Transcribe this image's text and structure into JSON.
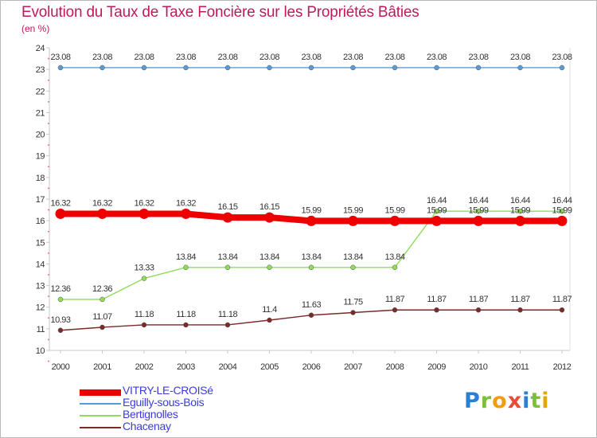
{
  "header": {
    "title": "Evolution du Taux de Taxe Foncière sur les Propriétés Bâties",
    "unit": "(en %)"
  },
  "brand": {
    "letters": [
      "P",
      "r",
      "o",
      "x",
      "i",
      "t",
      "i"
    ],
    "colors": [
      "#2a7fd4",
      "#7cbf3c",
      "#f39c12",
      "#e74c3c",
      "#2a7fd4",
      "#7cbf3c",
      "#e0a800"
    ]
  },
  "chart_data": {
    "type": "line",
    "title": "Evolution du Taux de Taxe Foncière sur les Propriétés Bâties",
    "ylabel": "(en %)",
    "xlabel": "",
    "categories": [
      "2000",
      "2001",
      "2002",
      "2003",
      "2004",
      "2005",
      "2006",
      "2007",
      "2008",
      "2009",
      "2010",
      "2011",
      "2012"
    ],
    "ylim": [
      10,
      24
    ],
    "yticks": [
      "10",
      "11",
      "12",
      "13",
      "14",
      "15",
      "16",
      "17",
      "18",
      "19",
      "20",
      "21",
      "22",
      "23",
      "24"
    ],
    "grid": false,
    "legend_position": "bottom-left",
    "series": [
      {
        "name": "VITRY-LE-CROISé",
        "color": "#ee0000",
        "values": [
          16.32,
          16.32,
          16.32,
          16.32,
          16.15,
          16.15,
          15.99,
          15.99,
          15.99,
          15.99,
          15.99,
          15.99,
          15.99
        ],
        "labels": [
          "16.32",
          "16.32",
          "16.32",
          "16.32",
          "16.15",
          "16.15",
          "15.99",
          "15.99",
          "15.99",
          "15.99",
          "15.99",
          "15.99",
          "15.99"
        ]
      },
      {
        "name": "Eguilly-sous-Bois",
        "color": "#5b9bd5",
        "values": [
          23.08,
          23.08,
          23.08,
          23.08,
          23.08,
          23.08,
          23.08,
          23.08,
          23.08,
          23.08,
          23.08,
          23.08,
          23.08
        ],
        "labels": [
          "23.08",
          "23.08",
          "23.08",
          "23.08",
          "23.08",
          "23.08",
          "23.08",
          "23.08",
          "23.08",
          "23.08",
          "23.08",
          "23.08",
          "23.08"
        ]
      },
      {
        "name": "Bertignolles",
        "color": "#8fdc5a",
        "values": [
          12.36,
          12.36,
          13.33,
          13.84,
          13.84,
          13.84,
          13.84,
          13.84,
          13.84,
          16.44,
          16.44,
          16.44,
          16.44
        ],
        "labels": [
          "12.36",
          "12.36",
          "13.33",
          "13.84",
          "13.84",
          "13.84",
          "13.84",
          "13.84",
          "13.84",
          "16.44",
          "16.44",
          "16.44",
          "16.44"
        ]
      },
      {
        "name": "Chacenay",
        "color": "#7a2a2a",
        "values": [
          10.93,
          11.07,
          11.18,
          11.18,
          11.18,
          11.4,
          11.63,
          11.75,
          11.87,
          11.87,
          11.87,
          11.87,
          11.87
        ],
        "labels": [
          "10.93",
          "11.07",
          "11.18",
          "11.18",
          "11.18",
          "11.4",
          "11.63",
          "11.75",
          "11.87",
          "11.87",
          "11.87",
          "11.87",
          "11.87"
        ]
      }
    ]
  }
}
